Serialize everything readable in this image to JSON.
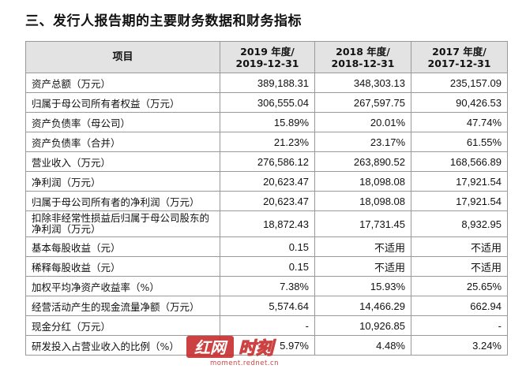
{
  "title": "三、发行人报告期的主要财务数据和财务指标",
  "table": {
    "headers": {
      "item": "项目",
      "cols": [
        {
          "line1": "2019 年度/",
          "line2": "2019-12-31"
        },
        {
          "line1": "2018 年度/",
          "line2": "2018-12-31"
        },
        {
          "line1": "2017 年度/",
          "line2": "2017-12-31"
        }
      ]
    },
    "rows": [
      {
        "label": "资产总额（万元）",
        "values": [
          "389,188.31",
          "348,303.13",
          "235,157.09"
        ]
      },
      {
        "label": "归属于母公司所有者权益（万元）",
        "values": [
          "306,555.04",
          "267,597.75",
          "90,426.53"
        ]
      },
      {
        "label": "资产负债率（母公司）",
        "values": [
          "15.89%",
          "20.01%",
          "47.74%"
        ]
      },
      {
        "label": "资产负债率（合并）",
        "values": [
          "21.23%",
          "23.17%",
          "61.55%"
        ]
      },
      {
        "label": "营业收入（万元）",
        "values": [
          "276,586.12",
          "263,890.52",
          "168,566.89"
        ]
      },
      {
        "label": "净利润（万元）",
        "values": [
          "20,623.47",
          "18,098.08",
          "17,921.54"
        ]
      },
      {
        "label": "归属于母公司所有者的净利润（万元）",
        "values": [
          "20,623.47",
          "18,098.08",
          "17,921.54"
        ]
      },
      {
        "label": "扣除非经常性损益后归属于母公司股东的净利润（万元）",
        "values": [
          "18,872.43",
          "17,731.45",
          "8,932.95"
        ],
        "tall": true
      },
      {
        "label": "基本每股收益（元）",
        "values": [
          "0.15",
          "不适用",
          "不适用"
        ]
      },
      {
        "label": "稀释每股收益（元）",
        "values": [
          "0.15",
          "不适用",
          "不适用"
        ]
      },
      {
        "label": "加权平均净资产收益率（%）",
        "values": [
          "7.38%",
          "15.93%",
          "25.65%"
        ]
      },
      {
        "label": "经营活动产生的现金流量净额（万元）",
        "values": [
          "5,574.64",
          "14,466.29",
          "662.94"
        ]
      },
      {
        "label": "现金分红（万元）",
        "values": [
          "-",
          "10,926.85",
          "-"
        ]
      },
      {
        "label": "研发投入占营业收入的比例（%）",
        "values": [
          "5.97%",
          "4.48%",
          "3.24%"
        ]
      }
    ]
  },
  "watermark": {
    "logo_text": "红网",
    "logo_text2": "时刻",
    "url": "moment.rednet.cn",
    "color": "#c62828"
  }
}
